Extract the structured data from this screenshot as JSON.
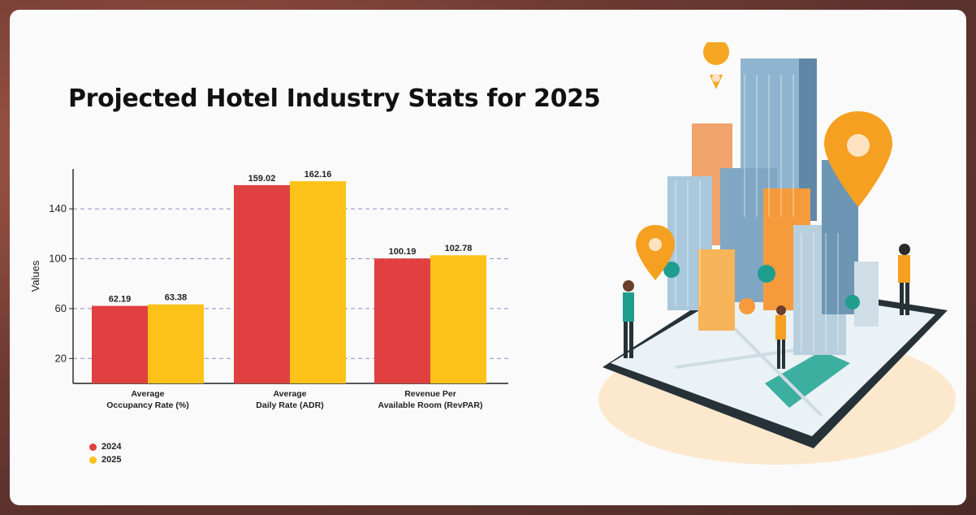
{
  "title": "Projected Hotel Industry Stats for 2025",
  "chart_data": {
    "type": "bar",
    "categories": [
      [
        "Average",
        "Occupancy Rate (%)"
      ],
      [
        "Average",
        "Daily Rate (ADR)"
      ],
      [
        "Revenue Per",
        "Available Room (RevPAR)"
      ]
    ],
    "series": [
      {
        "name": "2024",
        "values": [
          62.19,
          159.02,
          100.19
        ],
        "labels": [
          "62.19",
          "159.02",
          "100.19"
        ]
      },
      {
        "name": "2025",
        "values": [
          63.38,
          162.16,
          102.78
        ],
        "labels": [
          "63.38",
          "162.16",
          "102.78"
        ]
      }
    ],
    "ylabel": "Values",
    "yticks": [
      20,
      60,
      100,
      140
    ],
    "ylim": [
      0,
      172
    ],
    "grid": "horizontal-dashed",
    "legend": "bottom-left",
    "colors": {
      "2024": "#e04040",
      "2025": "#fcc21a",
      "grid": "#8e8ec8"
    }
  }
}
